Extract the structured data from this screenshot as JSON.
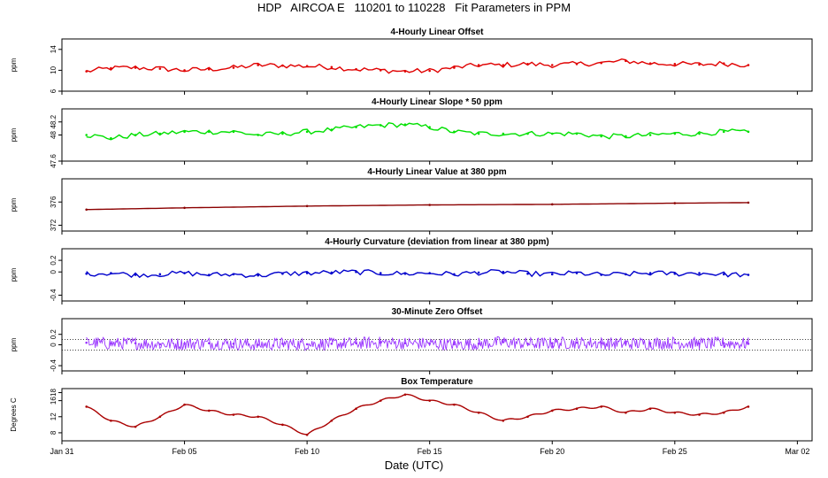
{
  "figure": {
    "title": "HDP   AIRCOA E   110201 to 110228   Fit Parameters in PPM",
    "xlabel": "Date (UTC)",
    "xticks": [
      "Jan 31",
      "Feb 05",
      "Feb 10",
      "Feb 15",
      "Feb 20",
      "Feb 25",
      "Mar 02"
    ]
  },
  "chart_data": [
    {
      "type": "line",
      "title": "4-Hourly Linear Offset",
      "ylabel": "ppm",
      "ylim": [
        6,
        16
      ],
      "yticks": [
        "6",
        "10",
        "14"
      ],
      "color": "#e00000",
      "x": [
        "Feb 01",
        "Feb 02",
        "Feb 03",
        "Feb 04",
        "Feb 05",
        "Feb 06",
        "Feb 07",
        "Feb 08",
        "Feb 09",
        "Feb 10",
        "Feb 11",
        "Feb 12",
        "Feb 13",
        "Feb 14",
        "Feb 15",
        "Feb 16",
        "Feb 17",
        "Feb 18",
        "Feb 19",
        "Feb 20",
        "Feb 21",
        "Feb 22",
        "Feb 23",
        "Feb 24",
        "Feb 25",
        "Feb 26",
        "Feb 27",
        "Feb 28"
      ],
      "values": [
        9.8,
        10.4,
        10.5,
        10.3,
        10.0,
        10.2,
        10.5,
        11.0,
        10.9,
        10.8,
        10.6,
        10.2,
        10.0,
        9.8,
        9.9,
        10.5,
        11.0,
        11.0,
        11.2,
        11.0,
        11.2,
        11.4,
        11.8,
        11.3,
        11.2,
        11.1,
        11.3,
        11.0
      ]
    },
    {
      "type": "line",
      "title": "4-Hourly Linear Slope * 50 ppm",
      "ylabel": "ppm",
      "ylim": [
        47.6,
        48.4
      ],
      "yticks": [
        "47.6",
        "48",
        "48.2"
      ],
      "color": "#00e000",
      "x": [
        "Feb 01",
        "Feb 02",
        "Feb 03",
        "Feb 04",
        "Feb 05",
        "Feb 06",
        "Feb 07",
        "Feb 08",
        "Feb 09",
        "Feb 10",
        "Feb 11",
        "Feb 12",
        "Feb 13",
        "Feb 14",
        "Feb 15",
        "Feb 16",
        "Feb 17",
        "Feb 18",
        "Feb 19",
        "Feb 20",
        "Feb 21",
        "Feb 22",
        "Feb 23",
        "Feb 24",
        "Feb 25",
        "Feb 26",
        "Feb 27",
        "Feb 28"
      ],
      "values": [
        48.0,
        47.95,
        48.0,
        48.02,
        48.05,
        48.05,
        48.05,
        48.0,
        48.02,
        48.05,
        48.08,
        48.12,
        48.15,
        48.16,
        48.12,
        48.05,
        48.02,
        48.02,
        48.02,
        48.02,
        48.02,
        47.98,
        47.98,
        48.0,
        48.02,
        48.02,
        48.05,
        48.05
      ]
    },
    {
      "type": "line",
      "title": "4-Hourly Linear Value at 380 ppm",
      "ylabel": "ppm",
      "ylim": [
        371,
        380
      ],
      "yticks": [
        "372",
        "376"
      ],
      "color": "#8b0000",
      "x": [
        "Feb 01",
        "Feb 05",
        "Feb 10",
        "Feb 15",
        "Feb 20",
        "Feb 25",
        "Feb 28"
      ],
      "values": [
        374.7,
        375.0,
        375.3,
        375.5,
        375.6,
        375.8,
        375.9
      ]
    },
    {
      "type": "line",
      "title": "4-Hourly Curvature (deviation from linear at 380 ppm)",
      "ylabel": "ppm",
      "ylim": [
        -0.5,
        0.4
      ],
      "yticks": [
        "-0.4",
        "0",
        "0.2"
      ],
      "color": "#0000cc",
      "x": [
        "Feb 01",
        "Feb 02",
        "Feb 03",
        "Feb 04",
        "Feb 05",
        "Feb 06",
        "Feb 07",
        "Feb 08",
        "Feb 09",
        "Feb 10",
        "Feb 11",
        "Feb 12",
        "Feb 13",
        "Feb 14",
        "Feb 15",
        "Feb 16",
        "Feb 17",
        "Feb 18",
        "Feb 19",
        "Feb 20",
        "Feb 21",
        "Feb 22",
        "Feb 23",
        "Feb 24",
        "Feb 25",
        "Feb 26",
        "Feb 27",
        "Feb 28"
      ],
      "values": [
        -0.03,
        -0.02,
        -0.05,
        -0.04,
        -0.02,
        -0.05,
        -0.04,
        -0.06,
        -0.03,
        -0.02,
        -0.01,
        0.0,
        -0.02,
        -0.03,
        -0.02,
        -0.04,
        -0.01,
        0.0,
        -0.03,
        -0.04,
        -0.02,
        -0.05,
        -0.04,
        -0.02,
        -0.03,
        -0.02,
        -0.04,
        -0.05
      ]
    },
    {
      "type": "line",
      "title": "30-Minute Zero Offset",
      "ylabel": "ppm",
      "ylim": [
        -0.5,
        0.5
      ],
      "yticks": [
        "-0.4",
        "0",
        "0.2"
      ],
      "color": "#9933ff",
      "reference_lines": [
        0.1,
        -0.1
      ],
      "x": [
        "Feb 01",
        "Feb 02",
        "Feb 03",
        "Feb 04",
        "Feb 05",
        "Feb 06",
        "Feb 07",
        "Feb 08",
        "Feb 09",
        "Feb 10",
        "Feb 11",
        "Feb 12",
        "Feb 13",
        "Feb 14",
        "Feb 15",
        "Feb 16",
        "Feb 17",
        "Feb 18",
        "Feb 19",
        "Feb 20",
        "Feb 21",
        "Feb 22",
        "Feb 23",
        "Feb 24",
        "Feb 25",
        "Feb 26",
        "Feb 27",
        "Feb 28"
      ],
      "values": [
        0.04,
        0.02,
        0.03,
        0.01,
        0.02,
        0.03,
        0.02,
        0.0,
        0.02,
        0.01,
        0.02,
        0.03,
        0.04,
        0.03,
        0.02,
        0.01,
        0.02,
        0.05,
        0.02,
        0.03,
        0.04,
        0.03,
        0.02,
        0.03,
        0.04,
        0.02,
        0.03,
        0.02
      ]
    },
    {
      "type": "line",
      "title": "Box Temperature",
      "ylabel": "Degrees C",
      "ylim": [
        6,
        19
      ],
      "yticks": [
        "8",
        "12",
        "16",
        "18"
      ],
      "color": "#aa0000",
      "x": [
        "Feb 01",
        "Feb 02",
        "Feb 03",
        "Feb 04",
        "Feb 05",
        "Feb 06",
        "Feb 07",
        "Feb 08",
        "Feb 09",
        "Feb 10",
        "Feb 11",
        "Feb 12",
        "Feb 13",
        "Feb 14",
        "Feb 15",
        "Feb 16",
        "Feb 17",
        "Feb 18",
        "Feb 19",
        "Feb 20",
        "Feb 21",
        "Feb 22",
        "Feb 23",
        "Feb 24",
        "Feb 25",
        "Feb 26",
        "Feb 27",
        "Feb 28"
      ],
      "values": [
        14.5,
        11.0,
        9.5,
        12.0,
        15.0,
        13.5,
        12.5,
        12.0,
        10.0,
        7.5,
        11.0,
        14.0,
        16.0,
        17.5,
        16.0,
        15.0,
        13.0,
        11.0,
        12.0,
        13.5,
        14.0,
        14.5,
        13.0,
        14.0,
        13.0,
        12.5,
        13.0,
        14.5
      ]
    }
  ]
}
